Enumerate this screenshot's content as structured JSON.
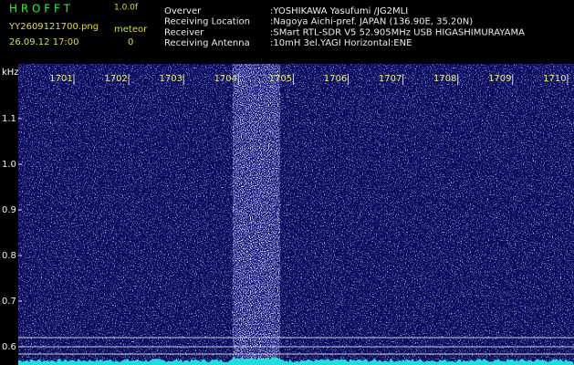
{
  "header": {
    "app": "H R O F F T",
    "version": "1.0.0f",
    "file": "YY2609121700.png",
    "mode": "meteor",
    "datetime": "26.09.12 17:00",
    "count": "0"
  },
  "info": [
    {
      "label": "Overver",
      "value": ":YOSHIKAWA Yasufumi /JG2MLI"
    },
    {
      "label": "Receiving Location",
      "value": ":Nagoya Aichi-pref. JAPAN (136.90E, 35.20N)"
    },
    {
      "label": "Receiver",
      "value": ":SMart RTL-SDR V5 52.905MHz USB HIGASHIMURAYAMA"
    },
    {
      "label": "Receiving Antenna",
      "value": ":10mH 3el.YAGI Horizontal:ENE"
    }
  ],
  "plot": {
    "y_unit": "kHz",
    "time_labels": [
      "1701",
      "1702",
      "1703",
      "1704",
      "1705",
      "1706",
      "1707",
      "1708",
      "1709",
      "1710"
    ],
    "freq_labels": [
      "1.1",
      "1.0",
      "0.9",
      "0.8",
      "0.7",
      "0.6"
    ]
  }
}
